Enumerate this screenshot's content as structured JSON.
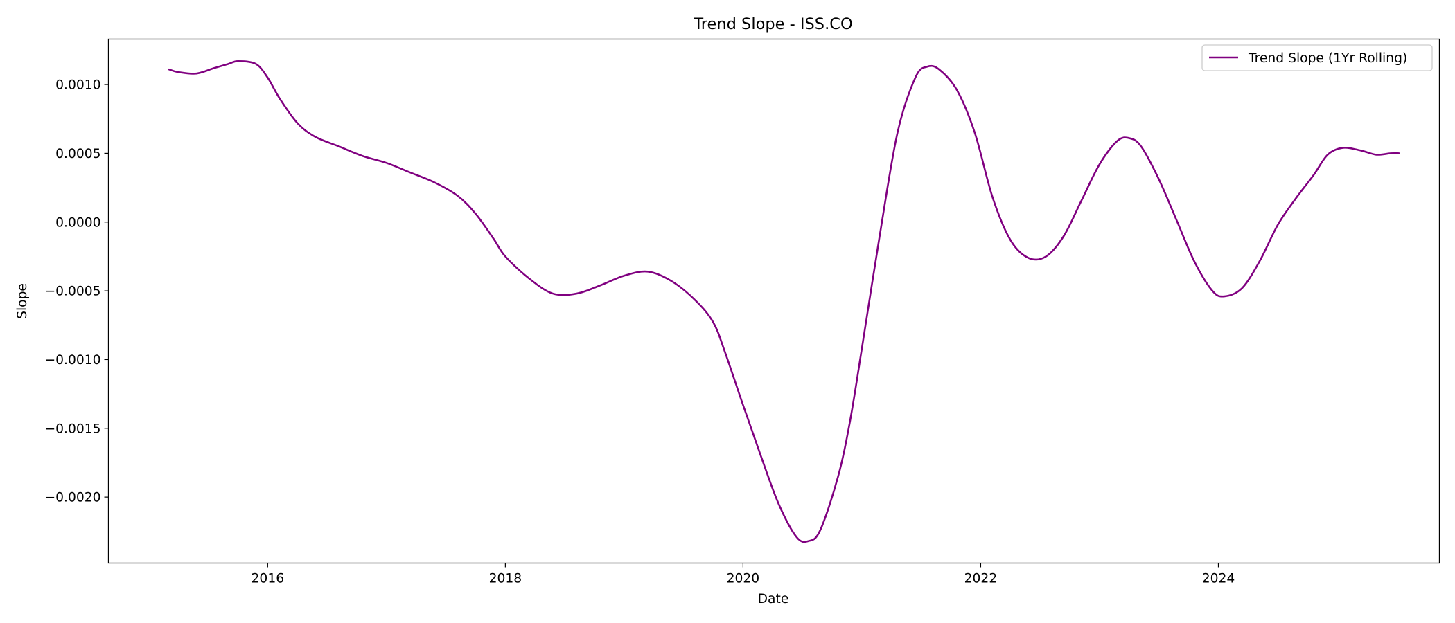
{
  "chart_data": {
    "type": "line",
    "title": "Trend Slope - ISS.CO",
    "xlabel": "Date",
    "ylabel": "Slope",
    "xlim": [
      2014.66,
      2025.86
    ],
    "ylim": [
      -0.00248,
      0.00133
    ],
    "x_ticks": [
      2016,
      2018,
      2020,
      2022,
      2024
    ],
    "x_tick_labels": [
      "2016",
      "2018",
      "2020",
      "2022",
      "2024"
    ],
    "y_ticks": [
      0.001,
      0.0005,
      0.0,
      -0.0005,
      -0.001,
      -0.0015,
      -0.002
    ],
    "y_tick_labels": [
      "0.0010",
      "0.0005",
      "0.0000",
      "−0.0005",
      "−0.0010",
      "−0.0015",
      "−0.0020"
    ],
    "grid": false,
    "legend_position": "top-right",
    "series": [
      {
        "name": "Trend Slope (1Yr Rolling)",
        "color": "#800080",
        "points": [
          [
            2015.17,
            0.00111
          ],
          [
            2015.25,
            0.00109
          ],
          [
            2015.4,
            0.00108
          ],
          [
            2015.55,
            0.00112
          ],
          [
            2015.67,
            0.00115
          ],
          [
            2015.75,
            0.00117
          ],
          [
            2015.9,
            0.00115
          ],
          [
            2016.0,
            0.00105
          ],
          [
            2016.1,
            0.0009
          ],
          [
            2016.25,
            0.00072
          ],
          [
            2016.4,
            0.00062
          ],
          [
            2016.6,
            0.00055
          ],
          [
            2016.8,
            0.00048
          ],
          [
            2017.0,
            0.00043
          ],
          [
            2017.2,
            0.00036
          ],
          [
            2017.4,
            0.00029
          ],
          [
            2017.6,
            0.00019
          ],
          [
            2017.75,
            6e-05
          ],
          [
            2017.9,
            -0.00012
          ],
          [
            2018.0,
            -0.00025
          ],
          [
            2018.2,
            -0.00041
          ],
          [
            2018.4,
            -0.00052
          ],
          [
            2018.6,
            -0.00052
          ],
          [
            2018.8,
            -0.00046
          ],
          [
            2019.0,
            -0.00039
          ],
          [
            2019.2,
            -0.00036
          ],
          [
            2019.4,
            -0.00043
          ],
          [
            2019.6,
            -0.00057
          ],
          [
            2019.75,
            -0.00073
          ],
          [
            2019.85,
            -0.00095
          ],
          [
            2020.0,
            -0.00133
          ],
          [
            2020.15,
            -0.0017
          ],
          [
            2020.3,
            -0.00205
          ],
          [
            2020.45,
            -0.00229
          ],
          [
            2020.55,
            -0.00232
          ],
          [
            2020.65,
            -0.00224
          ],
          [
            2020.8,
            -0.00185
          ],
          [
            2020.9,
            -0.00145
          ],
          [
            2021.0,
            -0.00092
          ],
          [
            2021.15,
            -0.0001
          ],
          [
            2021.3,
            0.00065
          ],
          [
            2021.45,
            0.00105
          ],
          [
            2021.55,
            0.00113
          ],
          [
            2021.65,
            0.00111
          ],
          [
            2021.8,
            0.00096
          ],
          [
            2021.95,
            0.00065
          ],
          [
            2022.1,
            0.00018
          ],
          [
            2022.25,
            -0.00013
          ],
          [
            2022.4,
            -0.00026
          ],
          [
            2022.55,
            -0.00025
          ],
          [
            2022.7,
            -0.0001
          ],
          [
            2022.85,
            0.00016
          ],
          [
            2023.0,
            0.00042
          ],
          [
            2023.15,
            0.00059
          ],
          [
            2023.25,
            0.00061
          ],
          [
            2023.35,
            0.00055
          ],
          [
            2023.5,
            0.00031
          ],
          [
            2023.65,
            1e-05
          ],
          [
            2023.8,
            -0.00029
          ],
          [
            2023.95,
            -0.0005
          ],
          [
            2024.05,
            -0.00054
          ],
          [
            2024.2,
            -0.00048
          ],
          [
            2024.35,
            -0.00028
          ],
          [
            2024.5,
            -2e-05
          ],
          [
            2024.65,
            0.00017
          ],
          [
            2024.8,
            0.00034
          ],
          [
            2024.92,
            0.00049
          ],
          [
            2025.05,
            0.00054
          ],
          [
            2025.2,
            0.00052
          ],
          [
            2025.33,
            0.00049
          ],
          [
            2025.45,
            0.0005
          ],
          [
            2025.52,
            0.0005
          ]
        ]
      }
    ]
  }
}
